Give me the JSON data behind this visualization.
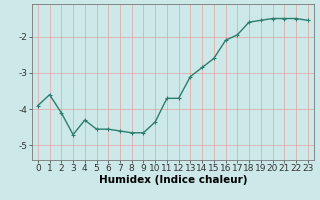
{
  "x": [
    0,
    1,
    2,
    3,
    4,
    5,
    6,
    7,
    8,
    9,
    10,
    11,
    12,
    13,
    14,
    15,
    16,
    17,
    18,
    19,
    20,
    21,
    22,
    23
  ],
  "y": [
    -3.9,
    -3.6,
    -4.1,
    -4.7,
    -4.3,
    -4.55,
    -4.55,
    -4.6,
    -4.65,
    -4.65,
    -4.35,
    -3.7,
    -3.7,
    -3.1,
    -2.85,
    -2.6,
    -2.1,
    -1.95,
    -1.6,
    -1.55,
    -1.5,
    -1.5,
    -1.5,
    -1.55
  ],
  "line_color": "#2d7d6e",
  "marker": "+",
  "marker_color": "#2d7d6e",
  "bg_color": "#cce8e8",
  "grid_color_v": "#e89090",
  "grid_color_h": "#e89090",
  "xlabel": "Humidex (Indice chaleur)",
  "xlim": [
    -0.5,
    23.5
  ],
  "ylim": [
    -5.4,
    -1.1
  ],
  "yticks": [
    -5,
    -4,
    -3,
    -2
  ],
  "xticks": [
    0,
    1,
    2,
    3,
    4,
    5,
    6,
    7,
    8,
    9,
    10,
    11,
    12,
    13,
    14,
    15,
    16,
    17,
    18,
    19,
    20,
    21,
    22,
    23
  ],
  "xlabel_fontsize": 7.5,
  "tick_fontsize": 6.5,
  "linewidth": 1.0,
  "markersize": 3.5
}
